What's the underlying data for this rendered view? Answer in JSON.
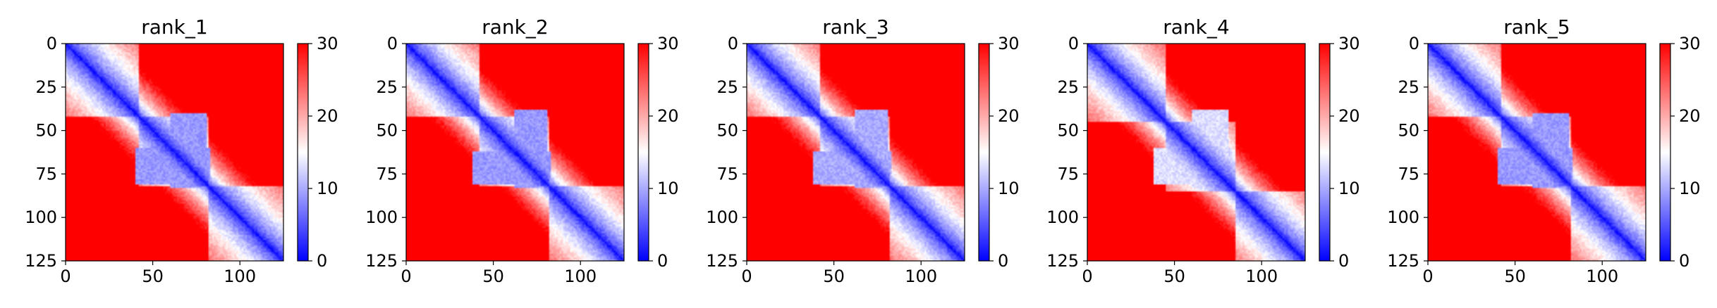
{
  "chart_data": [
    {
      "type": "heatmap",
      "title": "rank_1",
      "xlim": [
        0,
        125
      ],
      "ylim": [
        125,
        0
      ],
      "xticks": [
        0,
        50,
        100
      ],
      "yticks": [
        0,
        25,
        50,
        75,
        100,
        125
      ],
      "colorbar": {
        "min": 0,
        "max": 30,
        "ticks": [
          0,
          10,
          20,
          30
        ],
        "colors": [
          "#0000ff",
          "#ffffff",
          "#ff0000"
        ]
      },
      "pattern": {
        "description": "pairwise distance map; low values (blue) along diagonal",
        "domain_blocks": [
          [
            0,
            42
          ],
          [
            42,
            82
          ],
          [
            82,
            125
          ]
        ],
        "bulge": [
          [
            40,
            82
          ],
          [
            60,
            80
          ],
          9
        ]
      }
    },
    {
      "type": "heatmap",
      "title": "rank_2",
      "xlim": [
        0,
        125
      ],
      "ylim": [
        125,
        0
      ],
      "xticks": [
        0,
        50,
        100
      ],
      "yticks": [
        0,
        25,
        50,
        75,
        100,
        125
      ],
      "colorbar": {
        "min": 0,
        "max": 30,
        "ticks": [
          0,
          10,
          20,
          30
        ],
        "colors": [
          "#0000ff",
          "#ffffff",
          "#ff0000"
        ]
      },
      "pattern": {
        "description": "pairwise distance map; low values (blue) along diagonal",
        "domain_blocks": [
          [
            0,
            42
          ],
          [
            42,
            82
          ],
          [
            82,
            125
          ]
        ],
        "bulge": [
          [
            38,
            82
          ],
          [
            62,
            80
          ],
          9
        ]
      }
    },
    {
      "type": "heatmap",
      "title": "rank_3",
      "xlim": [
        0,
        125
      ],
      "ylim": [
        125,
        0
      ],
      "xticks": [
        0,
        50,
        100
      ],
      "yticks": [
        0,
        25,
        50,
        75,
        100,
        125
      ],
      "colorbar": {
        "min": 0,
        "max": 30,
        "ticks": [
          0,
          10,
          20,
          30
        ],
        "colors": [
          "#0000ff",
          "#ffffff",
          "#ff0000"
        ]
      },
      "pattern": {
        "description": "pairwise distance map; low values (blue) along diagonal",
        "domain_blocks": [
          [
            0,
            42
          ],
          [
            42,
            82
          ],
          [
            82,
            125
          ]
        ],
        "bulge": [
          [
            38,
            82
          ],
          [
            62,
            80
          ],
          10
        ]
      }
    },
    {
      "type": "heatmap",
      "title": "rank_4",
      "xlim": [
        0,
        125
      ],
      "ylim": [
        125,
        0
      ],
      "xticks": [
        0,
        50,
        100
      ],
      "yticks": [
        0,
        25,
        50,
        75,
        100,
        125
      ],
      "colorbar": {
        "min": 0,
        "max": 30,
        "ticks": [
          0,
          10,
          20,
          30
        ],
        "colors": [
          "#0000ff",
          "#ffffff",
          "#ff0000"
        ]
      },
      "pattern": {
        "description": "pairwise distance map; low values (blue) along diagonal",
        "domain_blocks": [
          [
            0,
            45
          ],
          [
            45,
            85
          ],
          [
            85,
            125
          ]
        ],
        "bulge": [
          [
            38,
            82
          ],
          [
            60,
            80
          ],
          13
        ]
      }
    },
    {
      "type": "heatmap",
      "title": "rank_5",
      "xlim": [
        0,
        125
      ],
      "ylim": [
        125,
        0
      ],
      "xticks": [
        0,
        50,
        100
      ],
      "yticks": [
        0,
        25,
        50,
        75,
        100,
        125
      ],
      "colorbar": {
        "min": 0,
        "max": 30,
        "ticks": [
          0,
          10,
          20,
          30
        ],
        "colors": [
          "#0000ff",
          "#ffffff",
          "#ff0000"
        ]
      },
      "pattern": {
        "description": "pairwise distance map; low values (blue) along diagonal",
        "domain_blocks": [
          [
            0,
            42
          ],
          [
            42,
            82
          ],
          [
            82,
            125
          ]
        ],
        "bulge": [
          [
            40,
            82
          ],
          [
            60,
            80
          ],
          9
        ]
      }
    }
  ]
}
